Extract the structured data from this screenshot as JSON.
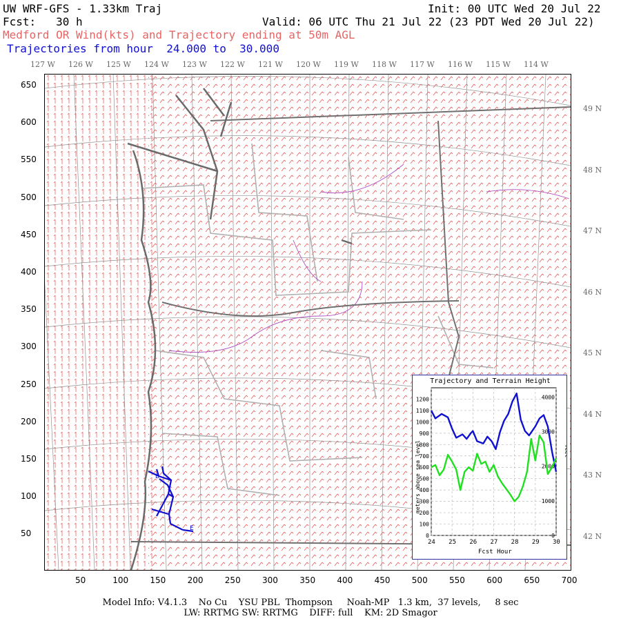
{
  "header": {
    "model_title": "UW WRF-GFS - 1.33km Traj",
    "init": "Init: 00 UTC Wed 20 Jul 22",
    "fcst": "Fcst:   30 h",
    "valid": "Valid: 06 UTC Thu 21 Jul 22 (23 PDT Wed 20 Jul 22)",
    "product": "Medford OR Wind(kts) and Trajectory ending at 50m AGL",
    "trajectory_range": "Trajectories from hour  24.000 to  30.000"
  },
  "longitude_labels": [
    "127 W",
    "126 W",
    "125 W",
    "124 W",
    "123 W",
    "122 W",
    "121 W",
    "120 W",
    "119 W",
    "118 W",
    "117 W",
    "116 W",
    "115 W",
    "114 W"
  ],
  "latitude_labels": [
    "49 N",
    "48 N",
    "47 N",
    "46 N",
    "45 N",
    "44 N",
    "43 N",
    "42 N"
  ],
  "y_axis_ticks": [
    "650",
    "600",
    "550",
    "500",
    "450",
    "400",
    "350",
    "300",
    "250",
    "200",
    "150",
    "100",
    "50"
  ],
  "x_axis_ticks": [
    "50",
    "100",
    "150",
    "200",
    "250",
    "300",
    "350",
    "400",
    "450",
    "500",
    "550",
    "600",
    "650",
    "700"
  ],
  "trajectory": {
    "color": "#1010d0",
    "start_marker": "B",
    "end_marker": "E"
  },
  "colors": {
    "wind_barbs": "#e86464",
    "state_borders": "#707070",
    "county_borders": "#b0b0b0",
    "coastline": "#6a6a6a",
    "rivers": "#b050c0",
    "trajectory": "#1010d0",
    "terrain_line": "#20e020"
  },
  "inset": {
    "title": "Trajectory and Terrain Height",
    "ylabel_left": "meters above sea level",
    "ylabel_right": "feet",
    "xlabel": "Fcst Hour",
    "y_ticks_left": [
      "1200",
      "1100",
      "1000",
      "900",
      "800",
      "700",
      "600",
      "500",
      "400",
      "300",
      "200",
      "100",
      "0"
    ],
    "y_ticks_right": [
      "4000",
      "3000",
      "2000",
      "1000",
      "0"
    ],
    "x_ticks": [
      "24",
      "25",
      "26",
      "27",
      "28",
      "29",
      "30"
    ]
  },
  "chart_data": {
    "type": "line",
    "title": "Trajectory and Terrain Height",
    "xlabel": "Fcst Hour",
    "ylabel": "meters above sea level",
    "xlim": [
      24,
      30
    ],
    "ylim": [
      0,
      1300
    ],
    "grid": true,
    "series": [
      {
        "color": "#1010d0",
        "x": [
          24.0,
          24.2,
          24.5,
          24.8,
          25.0,
          25.2,
          25.5,
          25.7,
          25.9,
          26.0,
          26.2,
          26.5,
          26.7,
          26.9,
          27.1,
          27.3,
          27.5,
          27.7,
          27.9,
          28.1,
          28.3,
          28.5,
          28.7,
          29.0,
          29.2,
          29.4,
          29.6,
          29.8,
          30.0
        ],
        "y": [
          1100,
          1030,
          1070,
          1040,
          940,
          860,
          890,
          850,
          900,
          920,
          830,
          810,
          870,
          830,
          760,
          910,
          1010,
          1070,
          1180,
          1250,
          1020,
          920,
          880,
          960,
          1030,
          1060,
          960,
          740,
          560
        ]
      },
      {
        "color": "#20e020",
        "x": [
          24.0,
          24.2,
          24.4,
          24.6,
          24.8,
          25.0,
          25.2,
          25.4,
          25.6,
          25.8,
          26.0,
          26.2,
          26.4,
          26.6,
          26.8,
          27.0,
          27.2,
          27.4,
          27.6,
          27.8,
          28.0,
          28.2,
          28.4,
          28.6,
          28.8,
          29.0,
          29.2,
          29.4,
          29.6,
          29.8,
          30.0
        ],
        "y": [
          600,
          620,
          530,
          580,
          710,
          650,
          580,
          400,
          560,
          600,
          570,
          720,
          630,
          650,
          560,
          620,
          520,
          460,
          410,
          360,
          300,
          340,
          430,
          560,
          850,
          660,
          880,
          820,
          540,
          600,
          680
        ]
      }
    ]
  },
  "footer": {
    "line1": "Model Info: V4.1.3    No Cu    YSU PBL  Thompson     Noah-MP   1.3 km,  37 levels,     8 sec",
    "line2": "LW: RRTMG SW: RRTMG    DIFF: full    KM: 2D Smagor"
  }
}
